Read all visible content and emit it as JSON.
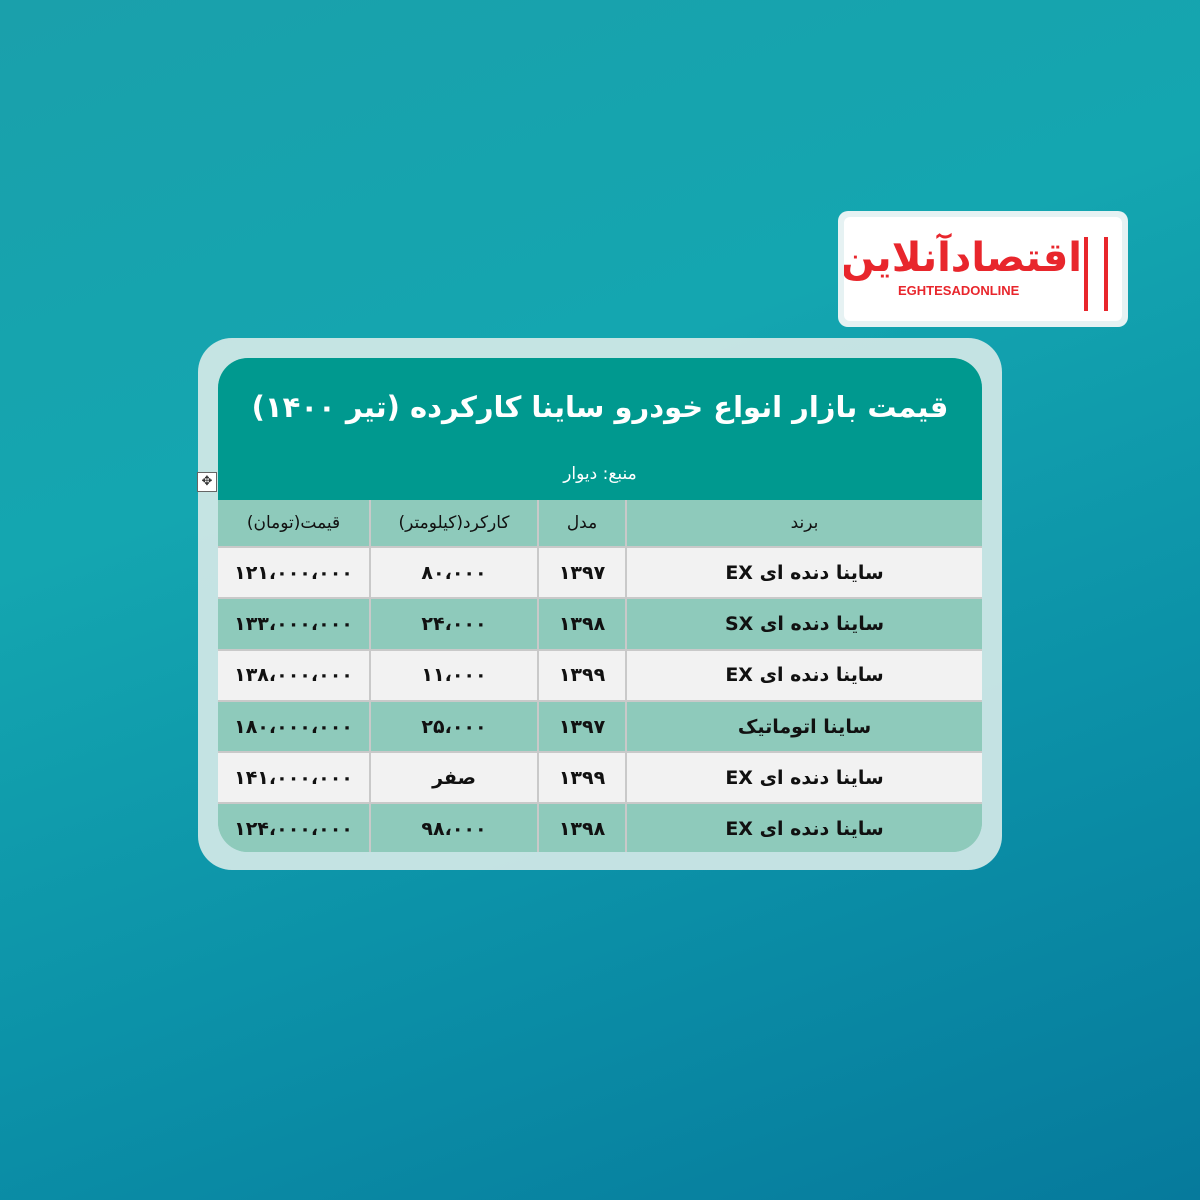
{
  "logo": {
    "text_fa": "اقتصادآنلاین",
    "text_en": "EGHTESADONLINE",
    "color": "#e8262c"
  },
  "title": "قیمت بازار انواع خودرو ساینا کارکرده (تیر ۱۴۰۰)",
  "source": "منبع: دیوار",
  "columns": [
    "برند",
    "مدل",
    "کارکرد(کیلومتر)",
    "قیمت(تومان)"
  ],
  "rows": [
    {
      "brand": "ساینا دنده ای EX",
      "model": "۱۳۹۷",
      "mileage": "۸۰،۰۰۰",
      "price": "۱۲۱،۰۰۰،۰۰۰"
    },
    {
      "brand": "ساینا دنده ای SX",
      "model": "۱۳۹۸",
      "mileage": "۲۴،۰۰۰",
      "price": "۱۳۳،۰۰۰،۰۰۰"
    },
    {
      "brand": "ساینا دنده ای EX",
      "model": "۱۳۹۹",
      "mileage": "۱۱،۰۰۰",
      "price": "۱۳۸،۰۰۰،۰۰۰"
    },
    {
      "brand": "ساینا اتوماتیک",
      "model": "۱۳۹۷",
      "mileage": "۲۵،۰۰۰",
      "price": "۱۸۰،۰۰۰،۰۰۰"
    },
    {
      "brand": "ساینا دنده ای EX",
      "model": "۱۳۹۹",
      "mileage": "صفر",
      "price": "۱۴۱،۰۰۰،۰۰۰"
    },
    {
      "brand": "ساینا دنده ای EX",
      "model": "۱۳۹۸",
      "mileage": "۹۸،۰۰۰",
      "price": "۱۲۴،۰۰۰،۰۰۰"
    }
  ],
  "colors": {
    "header": "#00998f",
    "row_dark": "#8ecabb",
    "row_light": "#f2f2f2"
  }
}
